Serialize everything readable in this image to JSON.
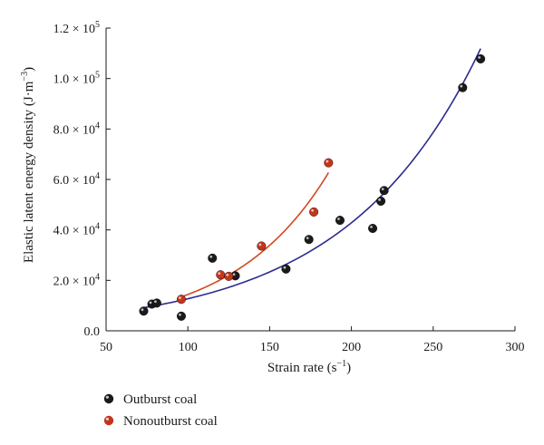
{
  "chart_data": {
    "type": "scatter",
    "xlabel": "Strain rate (s",
    "xlabel_sup": "−1",
    "xlabel_end": ")",
    "ylabel": "Elastic latent energy density (J·m",
    "ylabel_sup": "−3",
    "ylabel_end": ")",
    "xlim": [
      50,
      300
    ],
    "ylim": [
      0,
      120000
    ],
    "x_ticks": [
      {
        "value": 50,
        "label": "50"
      },
      {
        "value": 100,
        "label": "100"
      },
      {
        "value": 150,
        "label": "150"
      },
      {
        "value": 200,
        "label": "200"
      },
      {
        "value": 250,
        "label": "250"
      },
      {
        "value": 300,
        "label": "300"
      }
    ],
    "y_ticks": [
      {
        "value": 0,
        "mant": "0.0",
        "exp": ""
      },
      {
        "value": 20000,
        "mant": "2.0 × 10",
        "exp": "4"
      },
      {
        "value": 40000,
        "mant": "4.0 × 10",
        "exp": "4"
      },
      {
        "value": 60000,
        "mant": "6.0 × 10",
        "exp": "4"
      },
      {
        "value": 80000,
        "mant": "8.0 × 10",
        "exp": "4"
      },
      {
        "value": 100000,
        "mant": "1.0 × 10",
        "exp": "5"
      },
      {
        "value": 120000,
        "mant": "1.2 × 10",
        "exp": "5"
      }
    ],
    "legend_position": "bottom-left",
    "series": [
      {
        "name": "Outburst coal",
        "color": "#1a1a1a",
        "fit_color": "#2b2b8f",
        "points": [
          {
            "x": 73,
            "y": 7800
          },
          {
            "x": 78,
            "y": 10600
          },
          {
            "x": 81,
            "y": 11000
          },
          {
            "x": 96,
            "y": 5800
          },
          {
            "x": 115,
            "y": 28800
          },
          {
            "x": 129,
            "y": 21800
          },
          {
            "x": 160,
            "y": 24500
          },
          {
            "x": 174,
            "y": 36200
          },
          {
            "x": 193,
            "y": 43800
          },
          {
            "x": 213,
            "y": 40600
          },
          {
            "x": 218,
            "y": 51400
          },
          {
            "x": 220,
            "y": 55600
          },
          {
            "x": 268,
            "y": 96400
          },
          {
            "x": 279,
            "y": 107800
          }
        ],
        "fit_range": [
          73,
          279
        ]
      },
      {
        "name": "Nonoutburst coal",
        "color": "#c4351c",
        "fit_color": "#d2481e",
        "points": [
          {
            "x": 96,
            "y": 12500
          },
          {
            "x": 120,
            "y": 22200
          },
          {
            "x": 125,
            "y": 21600
          },
          {
            "x": 145,
            "y": 33600
          },
          {
            "x": 177,
            "y": 47100
          },
          {
            "x": 186,
            "y": 66600
          }
        ],
        "fit_range": [
          96,
          186
        ]
      }
    ]
  }
}
